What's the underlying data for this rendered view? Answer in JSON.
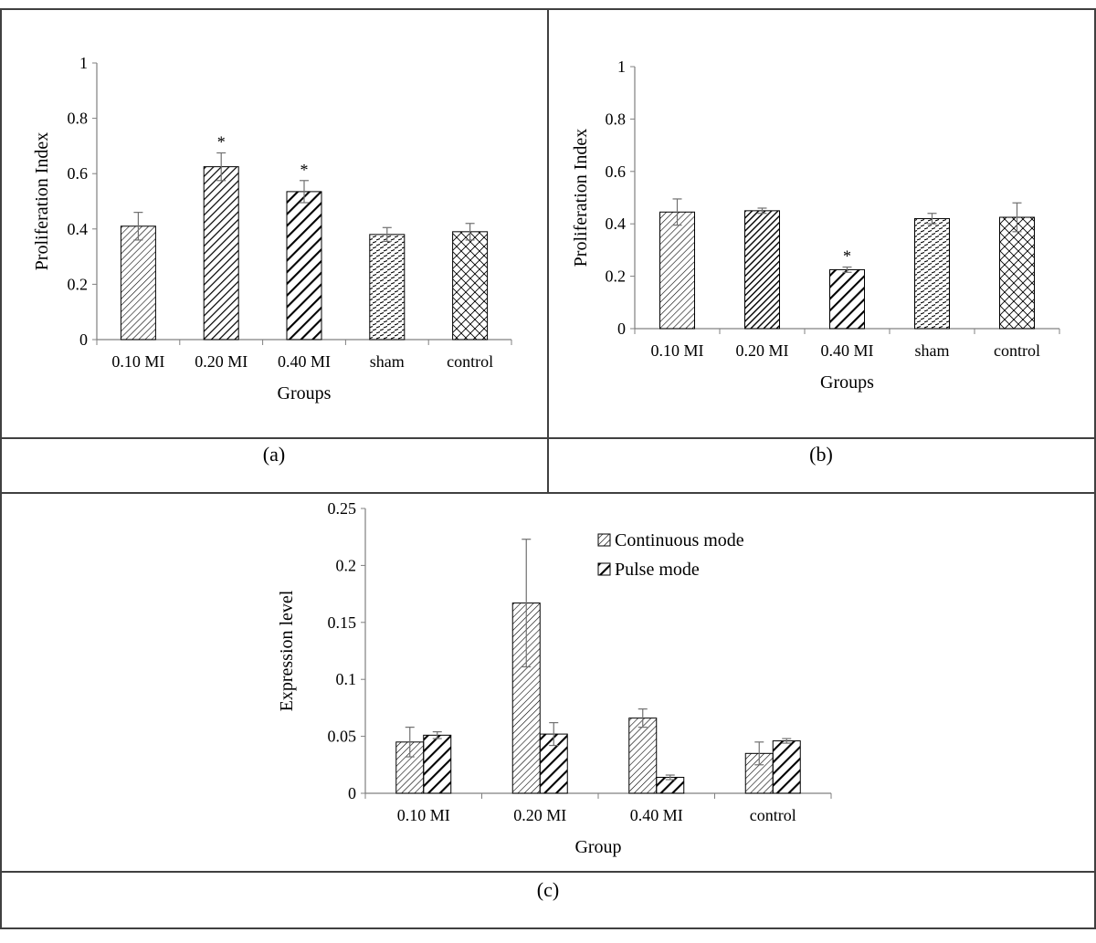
{
  "panel_labels": [
    "(a)",
    "(b)",
    "(c)"
  ],
  "chart_data": [
    {
      "type": "bar",
      "panel": "(a)",
      "xlabel": "Groups",
      "ylabel": "Proliferation Index",
      "ylim": [
        0,
        1
      ],
      "yticks": [
        "0",
        "0.2",
        "0.4",
        "0.6",
        "0.8",
        "1"
      ],
      "categories": [
        "0.10 MI",
        "0.20 MI",
        "0.40 MI",
        "sham",
        "control"
      ],
      "values": [
        0.41,
        0.625,
        0.535,
        0.38,
        0.39
      ],
      "errors": [
        0.05,
        0.05,
        0.04,
        0.025,
        0.03
      ],
      "significance": [
        "",
        "*",
        "*",
        "",
        ""
      ],
      "patterns": [
        "diag-light",
        "diag-medium",
        "diag-thick",
        "dash",
        "cross"
      ],
      "grid": false
    },
    {
      "type": "bar",
      "panel": "(b)",
      "xlabel": "Groups",
      "ylabel": "Proliferation Index",
      "ylim": [
        0,
        1
      ],
      "yticks": [
        "0",
        "0.2",
        "0.4",
        "0.6",
        "0.8",
        "1"
      ],
      "categories": [
        "0.10 MI",
        "0.20 MI",
        "0.40 MI",
        "sham",
        "control"
      ],
      "values": [
        0.445,
        0.45,
        0.225,
        0.42,
        0.425
      ],
      "errors": [
        0.05,
        0.01,
        0.01,
        0.02,
        0.055
      ],
      "significance": [
        "",
        "",
        "*",
        "",
        ""
      ],
      "patterns": [
        "diag-light",
        "diag-dense",
        "diag-thick",
        "dash",
        "cross"
      ],
      "grid": false
    },
    {
      "type": "bar",
      "panel": "(c)",
      "xlabel": "Group",
      "ylabel": "Expression level",
      "ylim": [
        0,
        0.25
      ],
      "yticks": [
        "0",
        "0.05",
        "0.1",
        "0.15",
        "0.2",
        "0.25"
      ],
      "categories": [
        "0.10 MI",
        "0.20 MI",
        "0.40 MI",
        "control"
      ],
      "series": [
        {
          "name": "Continuous mode",
          "values": [
            0.045,
            0.167,
            0.066,
            0.035
          ],
          "errors": [
            0.013,
            0.056,
            0.008,
            0.01
          ],
          "pattern": "diag-light"
        },
        {
          "name": "Pulse mode",
          "values": [
            0.051,
            0.052,
            0.014,
            0.046
          ],
          "errors": [
            0.003,
            0.01,
            0.002,
            0.002
          ],
          "pattern": "diag-thick"
        }
      ],
      "legend": "top-right",
      "grid": false
    }
  ]
}
